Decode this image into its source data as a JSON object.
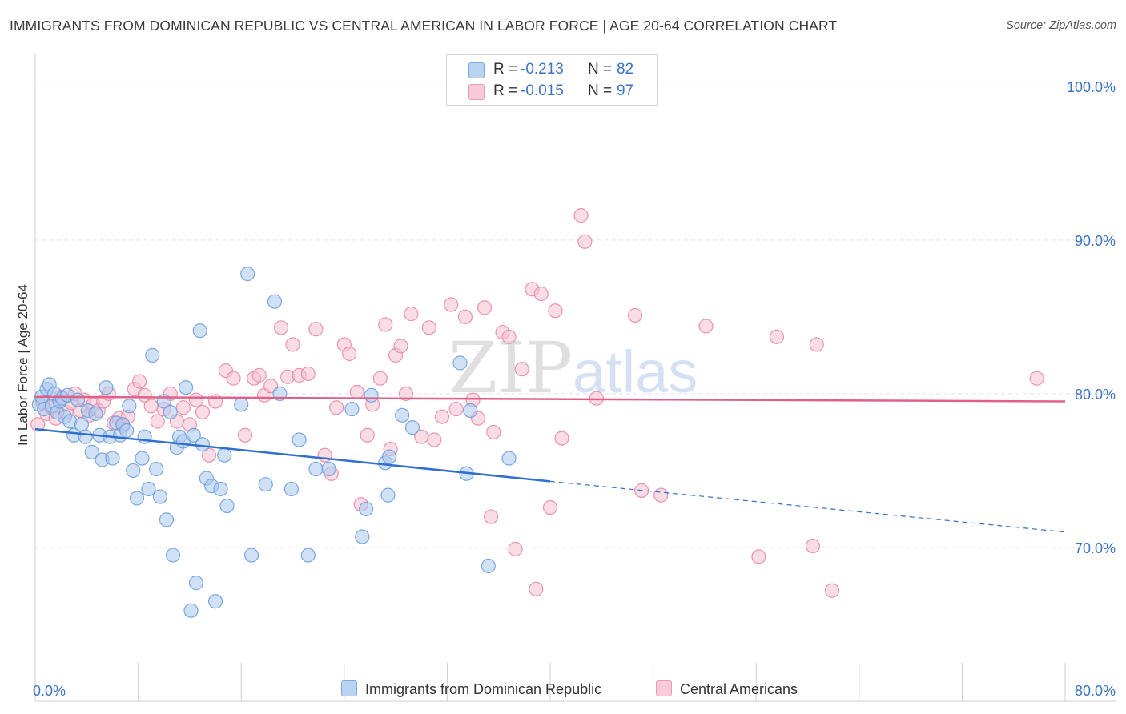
{
  "header": {
    "title": "IMMIGRANTS FROM DOMINICAN REPUBLIC VS CENTRAL AMERICAN IN LABOR FORCE | AGE 20-64 CORRELATION CHART",
    "source": "Source: ZipAtlas.com"
  },
  "watermark": {
    "zip": "ZIP",
    "atlas": "atlas"
  },
  "legend_top": [
    {
      "r_label": "R =",
      "r_value": "-0.213",
      "n_label": "N =",
      "n_value": "82"
    },
    {
      "r_label": "R =",
      "r_value": "-0.015",
      "n_label": "N =",
      "n_value": "97"
    }
  ],
  "legend_bottom": [
    {
      "label": "Immigrants from Dominican Republic"
    },
    {
      "label": "Central Americans"
    }
  ],
  "colors": {
    "blue_fill": "#a9c8ef",
    "blue_stroke": "#6e9fdc",
    "blue_line": "#2f6fd0",
    "pink_fill": "#f6bfd0",
    "pink_stroke": "#e88aa8",
    "pink_line": "#e0608a",
    "axis_value_text": "#3d74c6",
    "grid": "#e4e4e4"
  },
  "chart_data": {
    "type": "scatter",
    "title": "IMMIGRANTS FROM DOMINICAN REPUBLIC VS CENTRAL AMERICAN IN LABOR FORCE | AGE 20-64 CORRELATION CHART",
    "xlabel": "",
    "ylabel": "In Labor Force | Age 20-64",
    "xlim": [
      0,
      80
    ],
    "ylim": [
      60,
      101.5
    ],
    "x_tick_labels": [
      "0.0%",
      "80.0%"
    ],
    "y_ticks": [
      {
        "value": 70,
        "label": "70.0%"
      },
      {
        "value": 80,
        "label": "80.0%"
      },
      {
        "value": 90,
        "label": "90.0%"
      },
      {
        "value": 100,
        "label": "100.0%"
      }
    ],
    "grid": "horizontal dashed",
    "legend_position": "top-center",
    "series": [
      {
        "name": "Immigrants from Dominican Republic",
        "color": "#a9c8ef",
        "r": -0.213,
        "n": 82,
        "trend": {
          "x0": 0,
          "y0": 77.7,
          "x1": 40,
          "y1": 74.3,
          "dashed_to_x": 80,
          "dashed_to_y": 71.0
        },
        "points": [
          [
            0.3,
            79.3
          ],
          [
            0.5,
            79.8
          ],
          [
            0.7,
            79.0
          ],
          [
            0.9,
            80.3
          ],
          [
            1.1,
            80.6
          ],
          [
            1.3,
            79.2
          ],
          [
            1.5,
            80.0
          ],
          [
            1.7,
            78.8
          ],
          [
            1.9,
            79.5
          ],
          [
            2.1,
            79.7
          ],
          [
            2.3,
            78.5
          ],
          [
            2.5,
            79.9
          ],
          [
            2.7,
            78.2
          ],
          [
            3.0,
            77.3
          ],
          [
            3.3,
            79.6
          ],
          [
            3.6,
            78.0
          ],
          [
            3.9,
            77.2
          ],
          [
            4.1,
            78.9
          ],
          [
            4.4,
            76.2
          ],
          [
            4.7,
            78.7
          ],
          [
            5.0,
            77.3
          ],
          [
            5.2,
            75.7
          ],
          [
            5.5,
            80.4
          ],
          [
            5.8,
            77.2
          ],
          [
            6.0,
            75.8
          ],
          [
            6.3,
            78.1
          ],
          [
            6.6,
            77.3
          ],
          [
            6.8,
            78.0
          ],
          [
            7.1,
            77.6
          ],
          [
            7.3,
            79.2
          ],
          [
            7.6,
            75.0
          ],
          [
            7.9,
            73.2
          ],
          [
            8.3,
            75.8
          ],
          [
            8.5,
            77.2
          ],
          [
            8.8,
            73.8
          ],
          [
            9.1,
            82.5
          ],
          [
            9.4,
            75.1
          ],
          [
            9.7,
            73.3
          ],
          [
            10.0,
            79.5
          ],
          [
            10.2,
            71.8
          ],
          [
            10.5,
            78.8
          ],
          [
            10.7,
            69.5
          ],
          [
            11.0,
            76.5
          ],
          [
            11.2,
            77.2
          ],
          [
            11.5,
            76.9
          ],
          [
            11.7,
            80.4
          ],
          [
            12.1,
            65.9
          ],
          [
            12.3,
            77.3
          ],
          [
            12.5,
            67.7
          ],
          [
            12.8,
            84.1
          ],
          [
            13.0,
            76.7
          ],
          [
            13.3,
            74.5
          ],
          [
            13.7,
            74.0
          ],
          [
            14.0,
            66.5
          ],
          [
            14.4,
            73.8
          ],
          [
            14.7,
            76.0
          ],
          [
            14.9,
            72.7
          ],
          [
            16.0,
            79.3
          ],
          [
            16.5,
            87.8
          ],
          [
            16.8,
            69.5
          ],
          [
            17.9,
            74.1
          ],
          [
            18.6,
            86.0
          ],
          [
            19.0,
            80.0
          ],
          [
            19.9,
            73.8
          ],
          [
            20.5,
            77.0
          ],
          [
            21.2,
            69.5
          ],
          [
            21.8,
            75.1
          ],
          [
            22.8,
            75.1
          ],
          [
            24.6,
            79.0
          ],
          [
            25.4,
            70.7
          ],
          [
            25.7,
            72.5
          ],
          [
            26.1,
            79.9
          ],
          [
            27.2,
            75.5
          ],
          [
            27.4,
            73.4
          ],
          [
            27.5,
            75.9
          ],
          [
            28.5,
            78.6
          ],
          [
            29.3,
            77.8
          ],
          [
            33.0,
            82.0
          ],
          [
            33.5,
            74.8
          ],
          [
            33.8,
            78.9
          ],
          [
            35.2,
            68.8
          ],
          [
            36.8,
            75.8
          ]
        ]
      },
      {
        "name": "Central Americans",
        "color": "#f6bfd0",
        "r": -0.015,
        "n": 97,
        "trend": {
          "x0": 0,
          "y0": 79.8,
          "x1": 80,
          "y1": 79.5
        },
        "points": [
          [
            0.2,
            78.0
          ],
          [
            0.6,
            79.4
          ],
          [
            0.9,
            78.7
          ],
          [
            1.3,
            79.1
          ],
          [
            1.6,
            78.4
          ],
          [
            2.0,
            79.8
          ],
          [
            2.4,
            78.8
          ],
          [
            2.8,
            79.4
          ],
          [
            3.1,
            80.0
          ],
          [
            3.5,
            78.9
          ],
          [
            3.8,
            79.6
          ],
          [
            4.2,
            78.6
          ],
          [
            4.5,
            79.3
          ],
          [
            4.9,
            78.9
          ],
          [
            5.3,
            79.5
          ],
          [
            5.7,
            80.0
          ],
          [
            6.1,
            78.1
          ],
          [
            6.5,
            78.4
          ],
          [
            6.8,
            77.9
          ],
          [
            7.2,
            78.5
          ],
          [
            7.7,
            80.3
          ],
          [
            8.1,
            80.8
          ],
          [
            8.5,
            79.9
          ],
          [
            9.0,
            79.2
          ],
          [
            9.5,
            78.2
          ],
          [
            10.0,
            79.0
          ],
          [
            10.5,
            80.0
          ],
          [
            11.0,
            78.2
          ],
          [
            11.5,
            79.1
          ],
          [
            12.0,
            78.0
          ],
          [
            12.5,
            79.6
          ],
          [
            13.0,
            78.8
          ],
          [
            13.5,
            76.0
          ],
          [
            14.0,
            79.5
          ],
          [
            14.8,
            81.5
          ],
          [
            15.4,
            81.0
          ],
          [
            16.3,
            77.3
          ],
          [
            17.0,
            81.0
          ],
          [
            17.4,
            81.2
          ],
          [
            17.8,
            79.9
          ],
          [
            18.3,
            80.5
          ],
          [
            19.1,
            84.3
          ],
          [
            19.6,
            81.1
          ],
          [
            20.0,
            83.2
          ],
          [
            20.5,
            81.2
          ],
          [
            21.2,
            81.3
          ],
          [
            21.8,
            84.2
          ],
          [
            22.5,
            76.0
          ],
          [
            23.0,
            74.8
          ],
          [
            23.4,
            79.1
          ],
          [
            24.0,
            83.2
          ],
          [
            24.4,
            82.6
          ],
          [
            25.0,
            80.1
          ],
          [
            25.3,
            72.8
          ],
          [
            25.8,
            77.3
          ],
          [
            26.2,
            79.3
          ],
          [
            26.8,
            81.0
          ],
          [
            27.2,
            84.5
          ],
          [
            27.6,
            76.4
          ],
          [
            28.0,
            82.5
          ],
          [
            28.4,
            83.1
          ],
          [
            28.8,
            80.0
          ],
          [
            29.2,
            85.2
          ],
          [
            30.0,
            77.2
          ],
          [
            30.6,
            84.3
          ],
          [
            31.0,
            77.0
          ],
          [
            31.6,
            78.5
          ],
          [
            32.3,
            85.8
          ],
          [
            32.7,
            79.0
          ],
          [
            33.4,
            85.0
          ],
          [
            34.0,
            79.6
          ],
          [
            34.4,
            78.4
          ],
          [
            34.9,
            85.6
          ],
          [
            35.4,
            72.0
          ],
          [
            35.6,
            77.5
          ],
          [
            36.3,
            84.0
          ],
          [
            36.8,
            83.7
          ],
          [
            37.3,
            69.9
          ],
          [
            37.8,
            81.6
          ],
          [
            38.6,
            86.8
          ],
          [
            38.9,
            67.3
          ],
          [
            39.3,
            86.5
          ],
          [
            40.0,
            72.6
          ],
          [
            40.4,
            85.4
          ],
          [
            40.9,
            77.1
          ],
          [
            42.4,
            91.6
          ],
          [
            42.7,
            89.9
          ],
          [
            43.6,
            79.7
          ],
          [
            46.6,
            85.1
          ],
          [
            47.1,
            73.7
          ],
          [
            48.6,
            73.4
          ],
          [
            52.1,
            84.4
          ],
          [
            56.2,
            69.4
          ],
          [
            57.6,
            83.7
          ],
          [
            60.4,
            70.1
          ],
          [
            60.7,
            83.2
          ],
          [
            61.9,
            67.2
          ],
          [
            77.8,
            81.0
          ]
        ]
      }
    ]
  }
}
